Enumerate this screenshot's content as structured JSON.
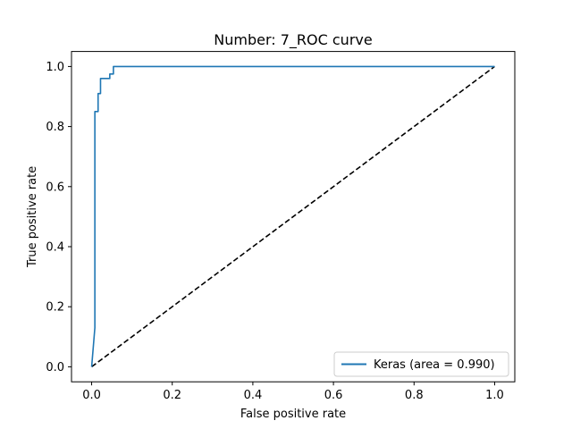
{
  "chart_data": {
    "type": "line",
    "title": "Number:  7_ROC curve",
    "xlabel": "False positive rate",
    "ylabel": "True positive rate",
    "xlim": [
      -0.05,
      1.05
    ],
    "ylim": [
      -0.05,
      1.05
    ],
    "xticks": [
      0.0,
      0.2,
      0.4,
      0.6,
      0.8,
      1.0
    ],
    "yticks": [
      0.0,
      0.2,
      0.4,
      0.6,
      0.8,
      1.0
    ],
    "grid": false,
    "legend_position": "lower-right",
    "series": [
      {
        "name": "",
        "style": "dashed",
        "color": "#000000",
        "x": [
          0.0,
          1.0
        ],
        "y": [
          0.0,
          1.0
        ]
      },
      {
        "name": "Keras (area = 0.990)",
        "style": "solid",
        "color": "#1f77b4",
        "x": [
          0.0,
          0.008,
          0.008,
          0.008,
          0.016,
          0.016,
          0.022,
          0.022,
          0.045,
          0.045,
          0.054,
          0.054,
          1.0
        ],
        "y": [
          0.0,
          0.13,
          0.85,
          0.85,
          0.85,
          0.91,
          0.91,
          0.96,
          0.96,
          0.975,
          0.975,
          1.0,
          1.0
        ]
      }
    ]
  }
}
